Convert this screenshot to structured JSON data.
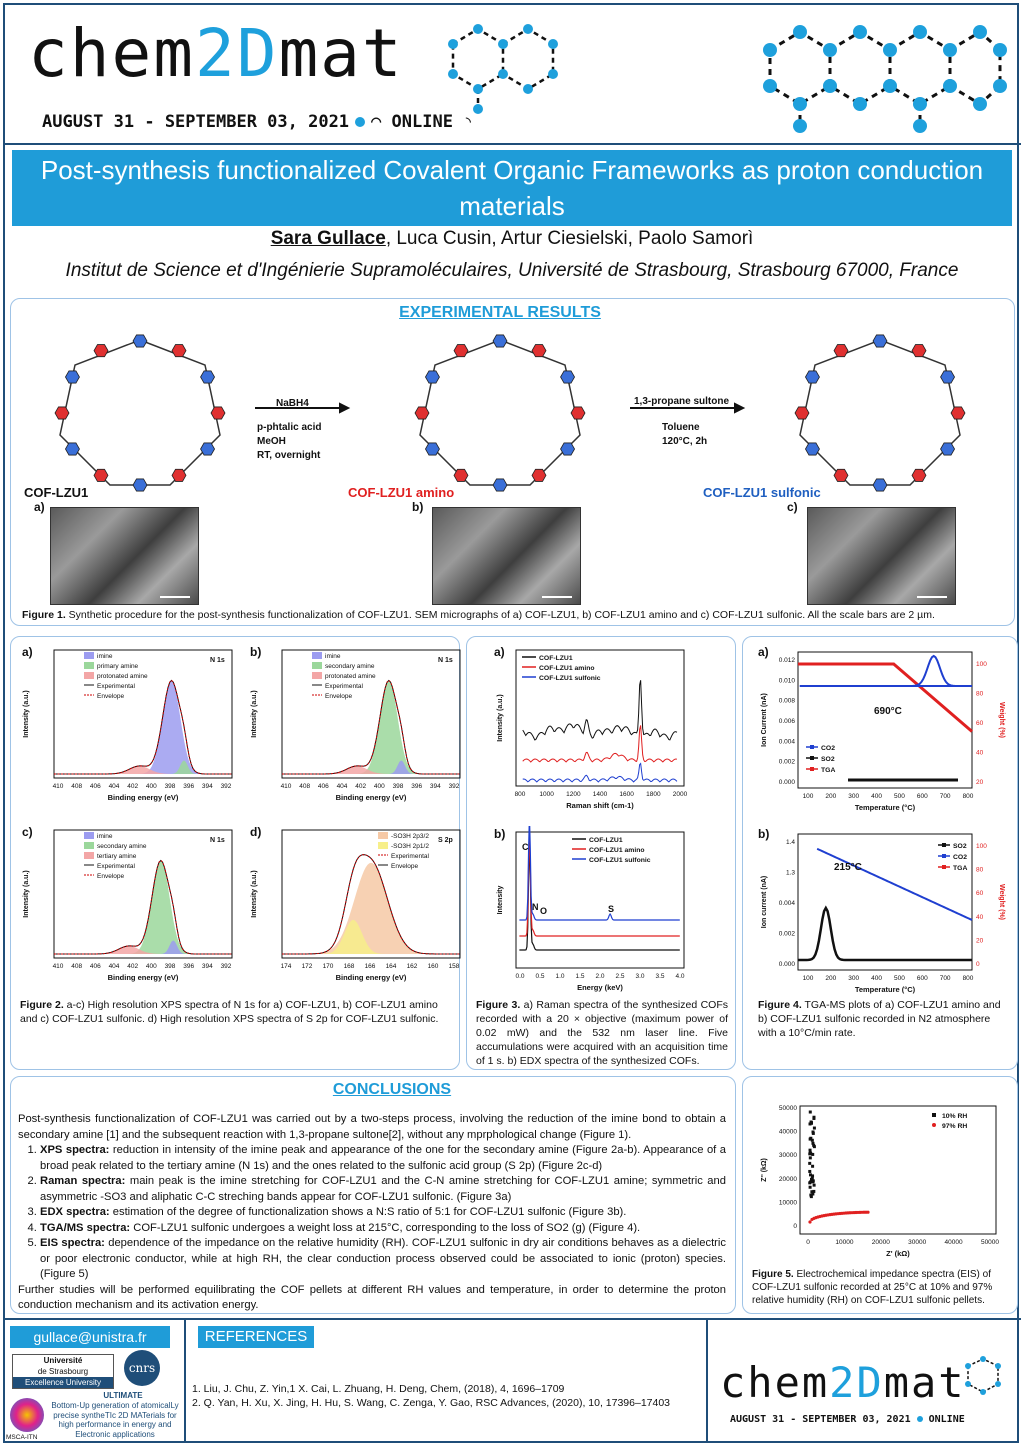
{
  "header": {
    "logo_left": "chem",
    "logo_accent": "2D",
    "logo_right": "mat",
    "date_line": "AUGUST 31 - SEPTEMBER 03, 2021",
    "online": "ONLINE"
  },
  "title": "Post-synthesis functionalized Covalent Organic Frameworks as proton conduction materials",
  "authors": {
    "presenter": "Sara Gullace",
    "others": ", Luca Cusin, Artur Ciesielski, Paolo Samorì"
  },
  "affiliation": "Institut de Science et d'Ingénierie Supramoléculaires, Université de Strasbourg, Strasbourg 67000, France",
  "experimental": {
    "heading": "EXPERIMENTAL RESULTS",
    "step1": {
      "reagent": "NaBH4",
      "cond1": "p-phtalic acid",
      "cond2": "MeOH",
      "cond3": "RT, overnight"
    },
    "step2": {
      "reagent": "1,3-propane sultone",
      "cond1": "Toluene",
      "cond2": "120°C, 2h"
    },
    "names": [
      "COF-LZU1",
      "COF-LZU1 amino",
      "COF-LZU1 sulfonic"
    ],
    "sem_labels": [
      "a)",
      "b)",
      "c)"
    ],
    "fig1_caption_bold": "Figure 1.",
    "fig1_caption": " Synthetic procedure for the post-synthesis functionalization of COF-LZU1. SEM micrographs of a) COF-LZU1, b) COF-LZU1 amino and c) COF-LZU1 sulfonic. All the scale bars are 2 µm."
  },
  "fig2": {
    "panels": [
      {
        "label": "a)",
        "tag": "N 1s",
        "legend": [
          "imine",
          "primary amine",
          "protonated amine",
          "Experimental",
          "Envelope"
        ],
        "xlabel": "Binding energy (eV)",
        "ylabel": "Intensity (a.u.)",
        "ticks": [
          "410",
          "408",
          "406",
          "404",
          "402",
          "400",
          "398",
          "396",
          "394",
          "392"
        ]
      },
      {
        "label": "b)",
        "tag": "N 1s",
        "legend": [
          "imine",
          "secondary amine",
          "protonated amine",
          "Experimental",
          "Envelope"
        ],
        "xlabel": "Binding energy (eV)",
        "ylabel": "Intensity (a.u.)",
        "ticks": [
          "410",
          "408",
          "406",
          "404",
          "402",
          "400",
          "398",
          "396",
          "394",
          "392"
        ]
      },
      {
        "label": "c)",
        "tag": "N 1s",
        "legend": [
          "imine",
          "secondary amine",
          "tertiary amine",
          "Experimental",
          "Envelope"
        ],
        "xlabel": "Binding energy (eV)",
        "ylabel": "Intensity (a.u.)",
        "ticks": [
          "410",
          "408",
          "406",
          "404",
          "402",
          "400",
          "398",
          "396",
          "394",
          "392"
        ]
      },
      {
        "label": "d)",
        "tag": "S 2p",
        "legend": [
          "-SO3H 2p3/2",
          "-SO3H 2p1/2",
          "Experimental",
          "Envelope"
        ],
        "xlabel": "Binding energy (eV)",
        "ylabel": "Intensity (a.u.)",
        "ticks": [
          "174",
          "172",
          "170",
          "168",
          "166",
          "164",
          "162",
          "160",
          "158"
        ]
      }
    ],
    "caption_bold": "Figure 2.",
    "caption": " a-c) High resolution XPS spectra of N 1s for a) COF-LZU1, b) COF-LZU1 amino and c) COF-LZU1 sulfonic. d) High resolution XPS spectra of S 2p for COF-LZU1 sulfonic."
  },
  "fig3": {
    "a": {
      "label": "a)",
      "legend": [
        "COF-LZU1",
        "COF-LZU1 amino",
        "COF-LZU1 sulfonic"
      ],
      "xlabel": "Raman shift (cm-1)",
      "ylabel": "Intensity (a.u.)",
      "ticks": [
        "800",
        "1000",
        "1200",
        "1400",
        "1600",
        "1800",
        "2000"
      ]
    },
    "b": {
      "label": "b)",
      "legend": [
        "COF-LZU1",
        "COF-LZU1 amino",
        "COF-LZU1 sulfonic"
      ],
      "xlabel": "Energy (keV)",
      "ylabel": "Intensity",
      "peaks": [
        "C",
        "N",
        "O",
        "S"
      ],
      "ticks": [
        "0.0",
        "0.5",
        "1.0",
        "1.5",
        "2.0",
        "2.5",
        "3.0",
        "3.5",
        "4.0"
      ]
    },
    "caption_bold": "Figure 3.",
    "caption": " a) Raman spectra of the synthesized COFs recorded with a 20 × objective (maximum power of 0.02 mW) and the 532 nm laser line. Five accumulations were acquired with an acquisition time of 1 s. b) EDX spectra of the synthesized COFs."
  },
  "fig4": {
    "a": {
      "label": "a)",
      "annotation": "690°C",
      "legend": [
        "CO2",
        "SO2",
        "TGA"
      ],
      "xlabel": "Temperature (°C)",
      "ylabel_left": "Ion Current (nA)",
      "ylabel_right": "Weight (%)",
      "yticks": [
        "0.012",
        "0.010",
        "0.008",
        "0.006",
        "0.004",
        "0.002",
        "0.000"
      ],
      "rticks": [
        "100",
        "80",
        "60",
        "40",
        "20"
      ],
      "xticks": [
        "100",
        "200",
        "300",
        "400",
        "500",
        "600",
        "700",
        "800"
      ]
    },
    "b": {
      "label": "b)",
      "annotation": "215°C",
      "legend": [
        "SO2",
        "CO2",
        "TGA"
      ],
      "xlabel": "Temperature (°C)",
      "ylabel_left": "Ion current (nA)",
      "ylabel_right": "Weight (%)",
      "yticks": [
        "1.4",
        "1.3",
        "0.004",
        "0.002",
        "0.000"
      ],
      "rticks": [
        "100",
        "80",
        "60",
        "40",
        "20",
        "0"
      ],
      "xticks": [
        "100",
        "200",
        "300",
        "400",
        "500",
        "600",
        "700",
        "800"
      ]
    },
    "caption_bold": "Figure 4.",
    "caption": " TGA-MS plots of a) COF-LZU1 amino and b) COF-LZU1 sulfonic recorded in N2 atmosphere with a 10°C/min rate."
  },
  "conclusions": {
    "heading": "CONCLUSIONS",
    "intro": "Post-synthesis functionalization of COF-LZU1 was carried out by a two-steps process, involving the reduction of the imine bond to obtain a secondary amine [1] and the subsequent reaction with 1,3-propane sultone[2], without any mprphological change (Figure 1).",
    "items": [
      {
        "head": "XPS spectra:",
        "text": " reduction in intensity of the imine peak and appearance of the one for the secondary amine (Figure 2a-b). Appearance of a broad peak related to the tertiary amine (N 1s) and the ones related to the sulfonic acid group (S 2p) (Figure 2c-d)"
      },
      {
        "head": "Raman spectra:",
        "text": " main peak is the imine stretching for COF-LZU1 and the C-N amine stretching for COF-LZU1 amine; symmetric and asymmetric -SO3 and aliphatic C-C streching bands appear for COF-LZU1 sulfonic. (Figure 3a)"
      },
      {
        "head": "EDX spectra:",
        "text": " estimation of the degree of functionalization shows a N:S ratio of 5:1 for COF-LZU1 sulfonic (Figure 3b)."
      },
      {
        "head": "TGA/MS spectra:",
        "text": " COF-LZU1 sulfonic undergoes a weight loss at 215°C, corresponding to the loss of SO2 (g) (Figure 4)."
      },
      {
        "head": "EIS spectra:",
        "text": " dependence of the impedance on the relative humidity (RH). COF-LZU1 sulfonic in dry air conditions behaves as a dielectric or poor electronic conductor, while at high RH, the clear conduction process observed could be associated to ionic (proton) species. (Figure 5)"
      }
    ],
    "outro": "Further studies will be performed equilibrating the COF pellets at different RH values and temperature, in order to determine the proton conduction mechanism and its activation energy."
  },
  "fig5": {
    "legend": [
      "10% RH",
      "97% RH"
    ],
    "xlabel": "Z' (kΩ)",
    "ylabel": "Z'' (kΩ)",
    "xticks": [
      "0",
      "10000",
      "20000",
      "30000",
      "40000",
      "50000"
    ],
    "yticks": [
      "50000",
      "40000",
      "30000",
      "20000",
      "10000",
      "0"
    ],
    "caption_bold": "Figure 5.",
    "caption": " Electrochemical impedance spectra (EIS) of COF-LZU1 sulfonic recorded at 25°C at 10% and 97% relative humidity (RH) on COF-LZU1 sulfonic pellets."
  },
  "footer": {
    "email": "gullace@unistra.fr",
    "unistra_line1": "Université",
    "unistra_line2": "de Strasbourg",
    "unistra_line3": "Excellence University",
    "ultimate_title": "ULTIMATE",
    "ultimate_desc": "Bottom-Up generation of atomicalLy precise syntheTIc 2D MATerials for high performance in energy and Electronic applications",
    "msca": "MSCA-ITN",
    "refs_heading": "REFERENCES",
    "ref1": "1. Liu, J. Chu, Z. Yin,1 X. Cai, L. Zhuang, H. Deng, Chem, (2018), 4, 1696–1709",
    "ref2": "2. Q. Yan, H. Xu, X. Jing, H. Hu, S. Wang, C. Zenga, Y. Gao, RSC Advances, (2020), 10, 17396–17403"
  },
  "colors": {
    "accent": "#1ea0dc",
    "navy": "#1f4e79",
    "red": "#e02020",
    "blue": "#1f3fd0"
  }
}
